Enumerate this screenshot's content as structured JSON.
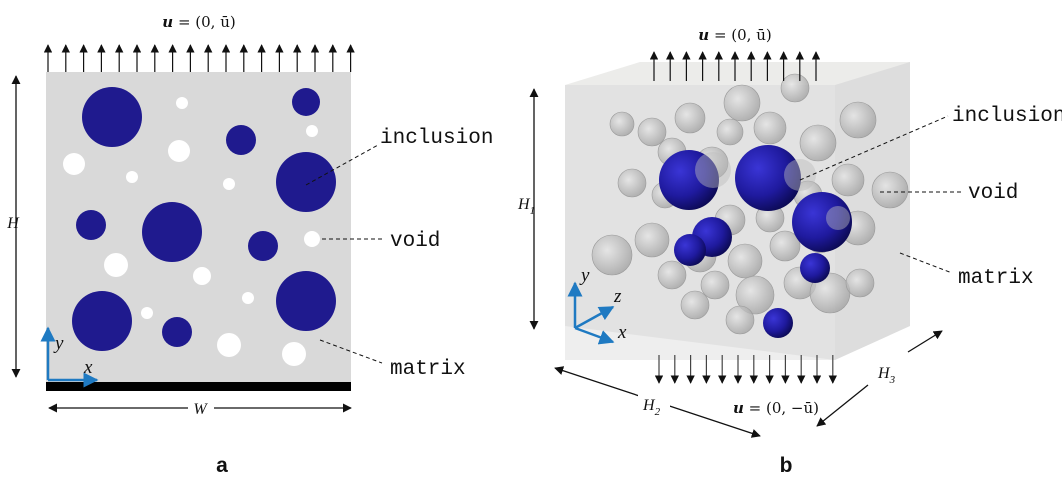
{
  "colors": {
    "matrix": "#d9d9d9",
    "inclusion": "#1f1a8e",
    "void": "#ffffff",
    "axis": "#1f7ac2",
    "arrow": "#111111",
    "box_front": "#e3e3e3"
  },
  "panel_a": {
    "label": "a",
    "top_bc": {
      "bold": "u",
      "rest": " = (0, ū)"
    },
    "height_label": "H",
    "width_label": "W",
    "axis_x": "x",
    "axis_y": "y",
    "label_inclusion": "inclusion",
    "label_void": "void",
    "label_matrix": "matrix"
  },
  "panel_b": {
    "label": "b",
    "top_bc": {
      "bold": "u",
      "rest": " = (0, ū)"
    },
    "bottom_bc": {
      "bold": "u",
      "rest": " = (0, −ū)"
    },
    "h1": {
      "main": "H",
      "sub": "1"
    },
    "h2": {
      "main": "H",
      "sub": "2"
    },
    "h3": {
      "main": "H",
      "sub": "3"
    },
    "axis_x": "x",
    "axis_y": "y",
    "axis_z": "z",
    "label_inclusion": "inclusion",
    "label_void": "void",
    "label_matrix": "matrix"
  }
}
